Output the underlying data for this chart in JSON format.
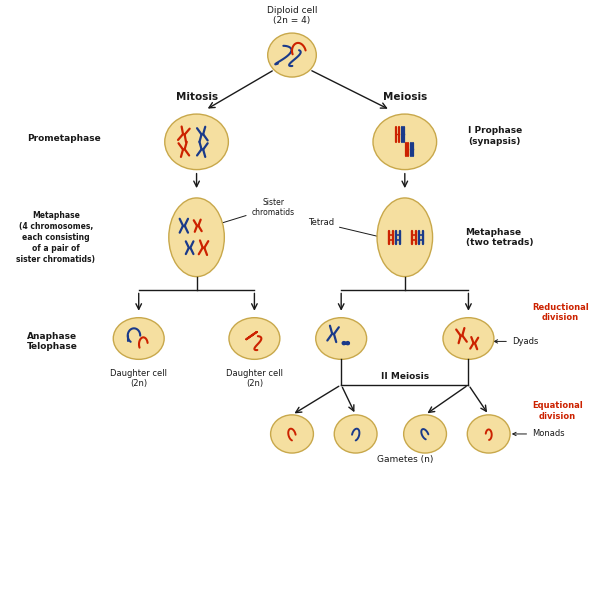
{
  "bg_color": "#ffffff",
  "cell_fill": "#f5dfa0",
  "cell_edge": "#c8a84b",
  "spindle_color": "#c8a84b",
  "arrow_color": "#1a1a1a",
  "text_color": "#1a1a1a",
  "red_color": "#cc2200",
  "blue_color": "#1a3a8a",
  "red_label_color": "#cc2200",
  "title": "Diploid cell\n(2n = 4)",
  "mitosis_label": "Mitosis",
  "meiosis_label": "Meiosis",
  "prometaphase_label": "Prometaphase",
  "metaphase_left_label": "Metaphase\n(4 chromosomes,\neach consisting\nof a pair of\nsister chromatids)",
  "anaphase_label": "Anaphase\nTelophase",
  "daughter1_label": "Daughter cell\n(2n)",
  "daughter2_label": "Daughter cell\n(2n)",
  "sister_chromatids_label": "Sister\nchromatids",
  "tetrad_label": "Tetrad",
  "metaphase_right_label": "Metaphase\n(two tetrads)",
  "i_prophase_label": "I Prophase\n(synapsis)",
  "reductional_label": "Reductional\ndivision",
  "dyads_label": "Dyads",
  "ii_meiosis_label": "II Meiosis",
  "equational_label": "Equational\ndivision",
  "monads_label": "Monads",
  "gametes_label": "Gametes (n)"
}
